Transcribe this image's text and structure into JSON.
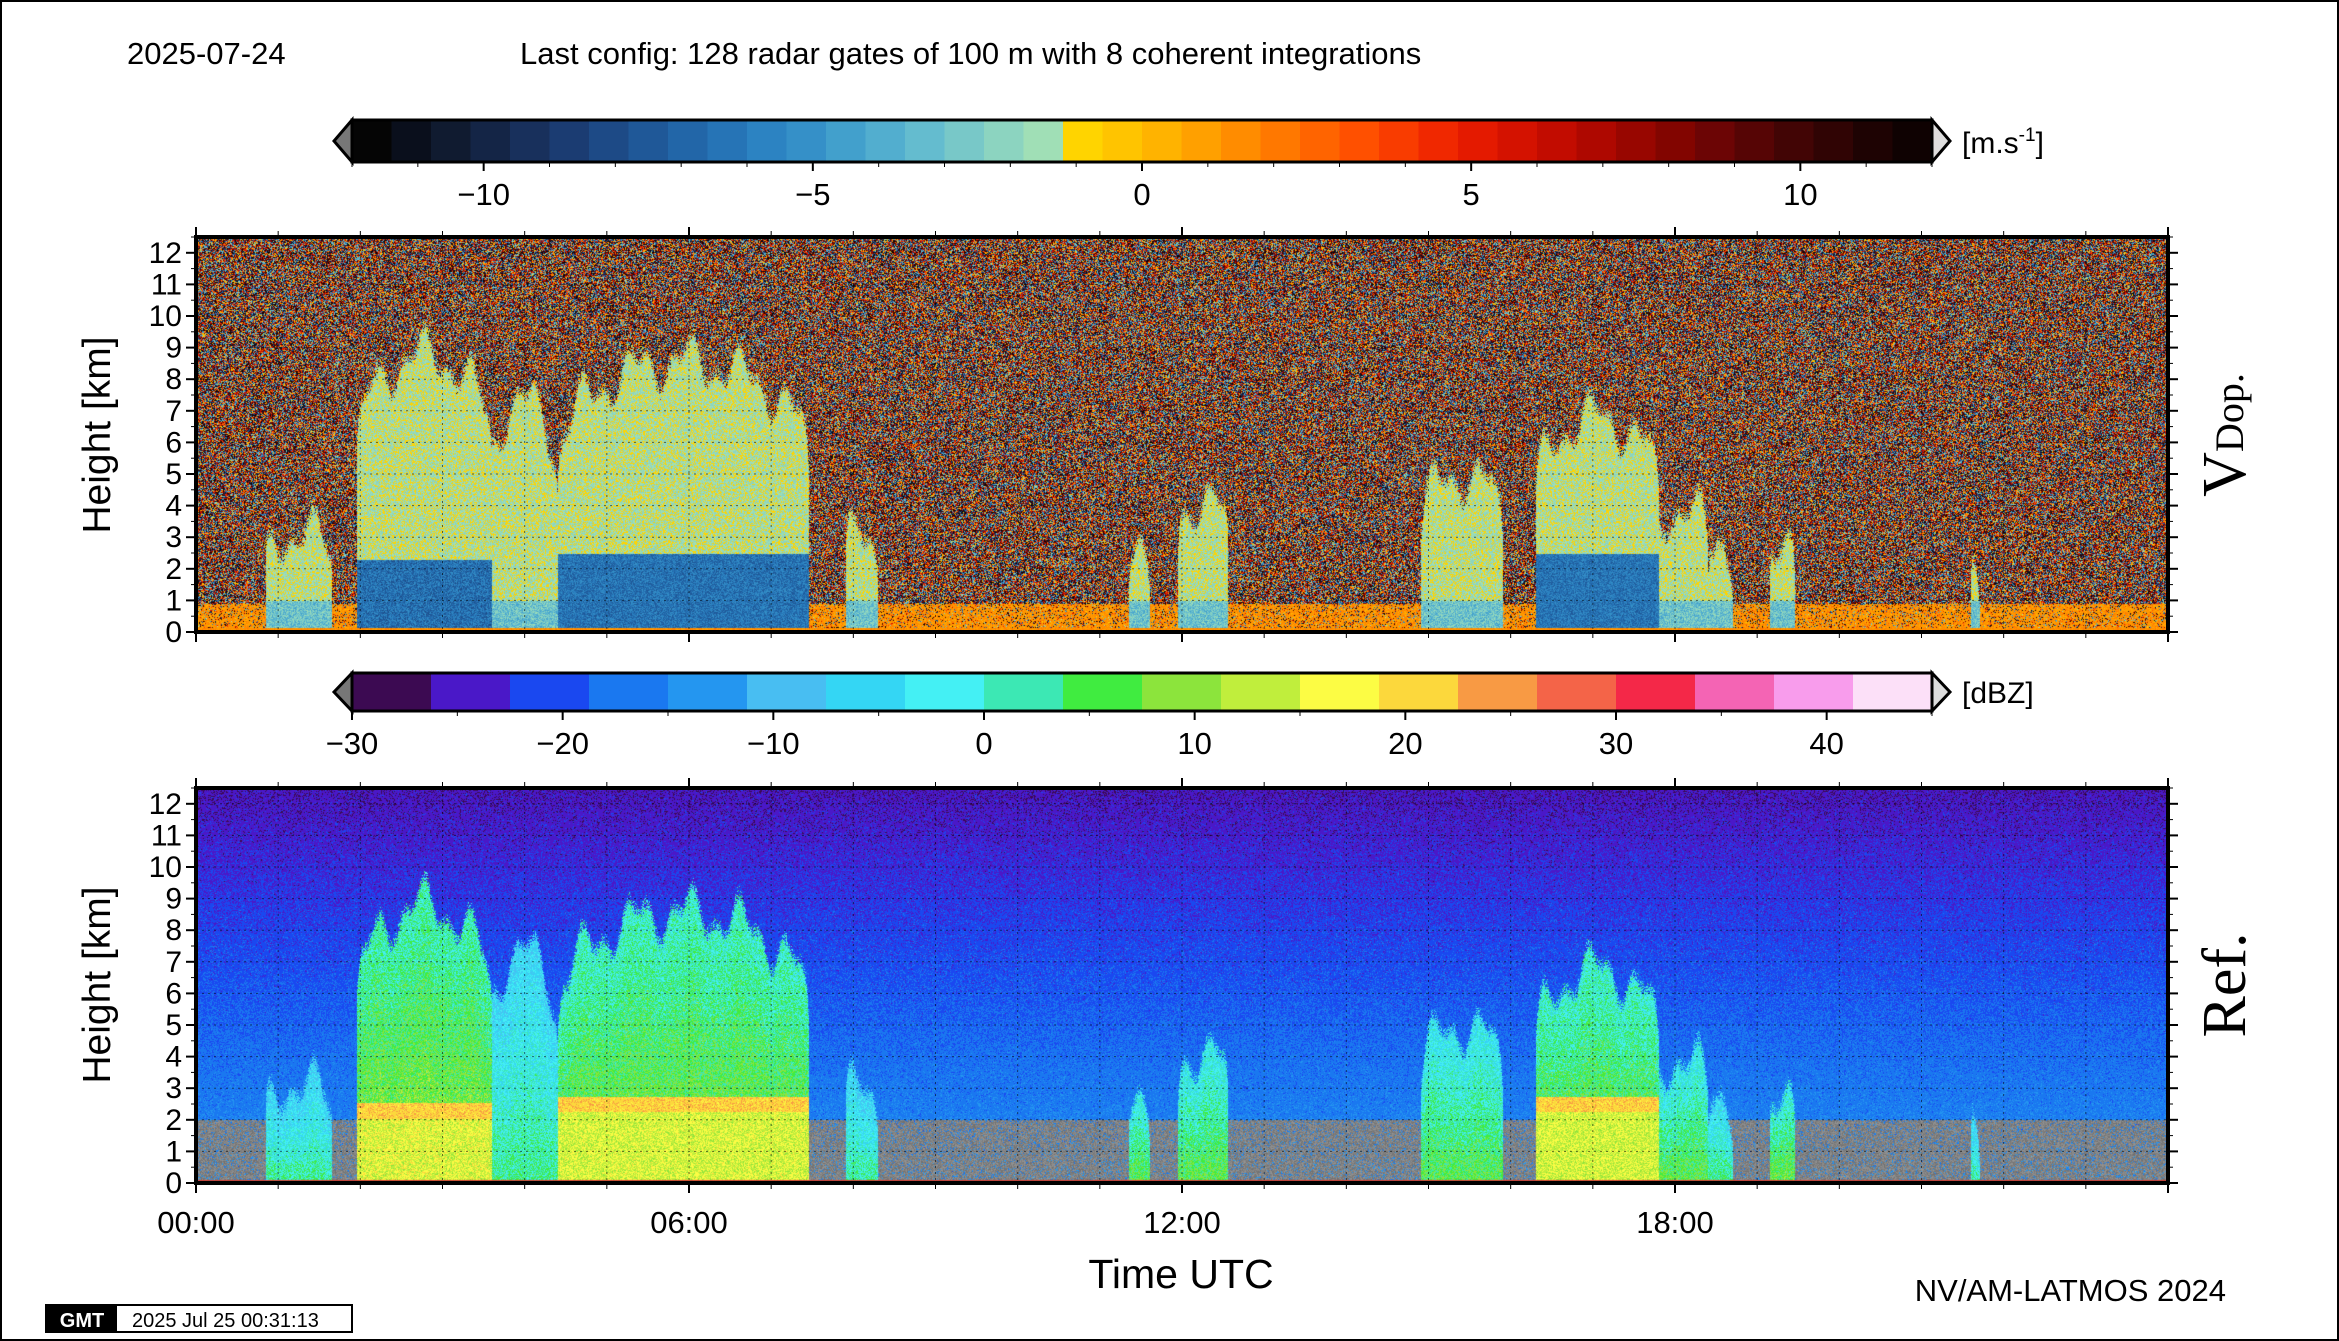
{
  "header": {
    "date": "2025-07-24",
    "config": "Last config: 128 radar gates of 100 m with 8 coherent integrations"
  },
  "footer": {
    "gmt_logo": "GMT",
    "timestamp": "2025 Jul 25 00:31:13",
    "credit": "NV/AM-LATMOS 2024"
  },
  "chart_data": [
    {
      "id": "doppler",
      "type": "heatmap",
      "title": "",
      "side_label_main": "V",
      "side_label_sub": "Dop.",
      "ylabel": "Height [km]",
      "xlabel": "",
      "ylim": [
        0,
        12.5
      ],
      "yticks": [
        "0",
        "1",
        "2",
        "3",
        "4",
        "5",
        "6",
        "7",
        "8",
        "9",
        "10",
        "11",
        "12"
      ],
      "xlim_hours": [
        0,
        24
      ],
      "x_tick_labels_shown": false,
      "colorbar": {
        "unit_main": "[m.s",
        "unit_sup": "-1",
        "unit_end": "]",
        "range": [
          -12,
          12
        ],
        "ticks": [
          -10,
          -5,
          0,
          5,
          10
        ],
        "tick_labels": [
          "−10",
          "−5",
          "0",
          "5",
          "10"
        ],
        "colors": [
          "#050505",
          "#0a0f1c",
          "#101b30",
          "#142546",
          "#18305c",
          "#1b3c72",
          "#1d4a86",
          "#1f5898",
          "#2266a8",
          "#2674b6",
          "#2c83c2",
          "#3590c8",
          "#42a0cc",
          "#52aecf",
          "#64bccf",
          "#78c8c8",
          "#8cd4c0",
          "#a0dfb6",
          "#ffd400",
          "#ffc400",
          "#ffb300",
          "#ffa000",
          "#ff8c00",
          "#ff7800",
          "#ff6400",
          "#ff5000",
          "#f93c00",
          "#f02800",
          "#e41a00",
          "#d41200",
          "#c20c00",
          "#ae0800",
          "#980600",
          "#820500",
          "#6c0505",
          "#560505",
          "#420505",
          "#300404",
          "#1e0303",
          "#0f0202"
        ],
        "extend": "both"
      },
      "description_cells": "noise everywhere above clouds; cloud columns near 0 to -3 m/s; precipitation cores -5 to -8 m/s below 2.5 km"
    },
    {
      "id": "reflectivity",
      "type": "heatmap",
      "title": "",
      "side_label_main": "Ref.",
      "ylabel": "Height [km]",
      "xlabel": "Time UTC",
      "ylim": [
        0,
        12.5
      ],
      "yticks": [
        "0",
        "1",
        "2",
        "3",
        "4",
        "5",
        "6",
        "7",
        "8",
        "9",
        "10",
        "11",
        "12"
      ],
      "xlim_hours": [
        0,
        24
      ],
      "xticks": [
        "00:00",
        "06:00",
        "12:00",
        "18:00"
      ],
      "colorbar": {
        "unit_main": "[dBZ]",
        "range": [
          -30,
          45
        ],
        "ticks": [
          -30,
          -20,
          -10,
          0,
          10,
          20,
          30,
          40
        ],
        "tick_labels": [
          "−30",
          "−20",
          "−10",
          "0",
          "10",
          "20",
          "30",
          "40"
        ],
        "colors": [
          "#3c0a52",
          "#4a18c8",
          "#1a48f0",
          "#1a78f0",
          "#2496f0",
          "#48bef2",
          "#34d6f4",
          "#44f0f4",
          "#3ce8b4",
          "#40ec40",
          "#8ce43c",
          "#c0ee3c",
          "#fcfc44",
          "#fcd83c",
          "#f89a44",
          "#f46448",
          "#f42848",
          "#f464b4",
          "#f89cec",
          "#fce0f8"
        ],
        "extend": "both"
      },
      "description_cells": "clear air -20 to -15 dBZ above ~3 km; grey clutter below 2 km; cloud/precip columns 0 to 20 dBZ with bright band near 2.4 km"
    }
  ],
  "events": [
    {
      "start": 0.85,
      "end": 1.65,
      "top": 3.2,
      "core": 0,
      "strength": 0.2
    },
    {
      "start": 1.95,
      "end": 3.6,
      "top": 8.8,
      "core": 2.3,
      "strength": 1.0
    },
    {
      "start": 3.55,
      "end": 4.4,
      "top": 7.3,
      "core": 0,
      "strength": 0.25
    },
    {
      "start": 4.4,
      "end": 7.45,
      "top": 8.6,
      "core": 2.5,
      "strength": 0.9
    },
    {
      "start": 7.9,
      "end": 8.3,
      "top": 3.3,
      "core": 0,
      "strength": 0.2
    },
    {
      "start": 11.35,
      "end": 11.6,
      "top": 3.2,
      "core": 0,
      "strength": 0.6
    },
    {
      "start": 11.95,
      "end": 12.55,
      "top": 4.3,
      "core": 0,
      "strength": 0.6
    },
    {
      "start": 14.9,
      "end": 15.9,
      "top": 5.0,
      "core": 0,
      "strength": 0.55
    },
    {
      "start": 16.3,
      "end": 17.8,
      "top": 6.8,
      "core": 2.5,
      "strength": 0.85
    },
    {
      "start": 17.75,
      "end": 18.4,
      "top": 4.0,
      "core": 0,
      "strength": 0.6
    },
    {
      "start": 18.4,
      "end": 18.7,
      "top": 3.0,
      "core": 0,
      "strength": 0.3
    },
    {
      "start": 19.15,
      "end": 19.45,
      "top": 3.3,
      "core": 0,
      "strength": 0.7
    },
    {
      "start": 21.6,
      "end": 21.7,
      "top": 2.0,
      "core": 0,
      "strength": 0.15
    }
  ]
}
